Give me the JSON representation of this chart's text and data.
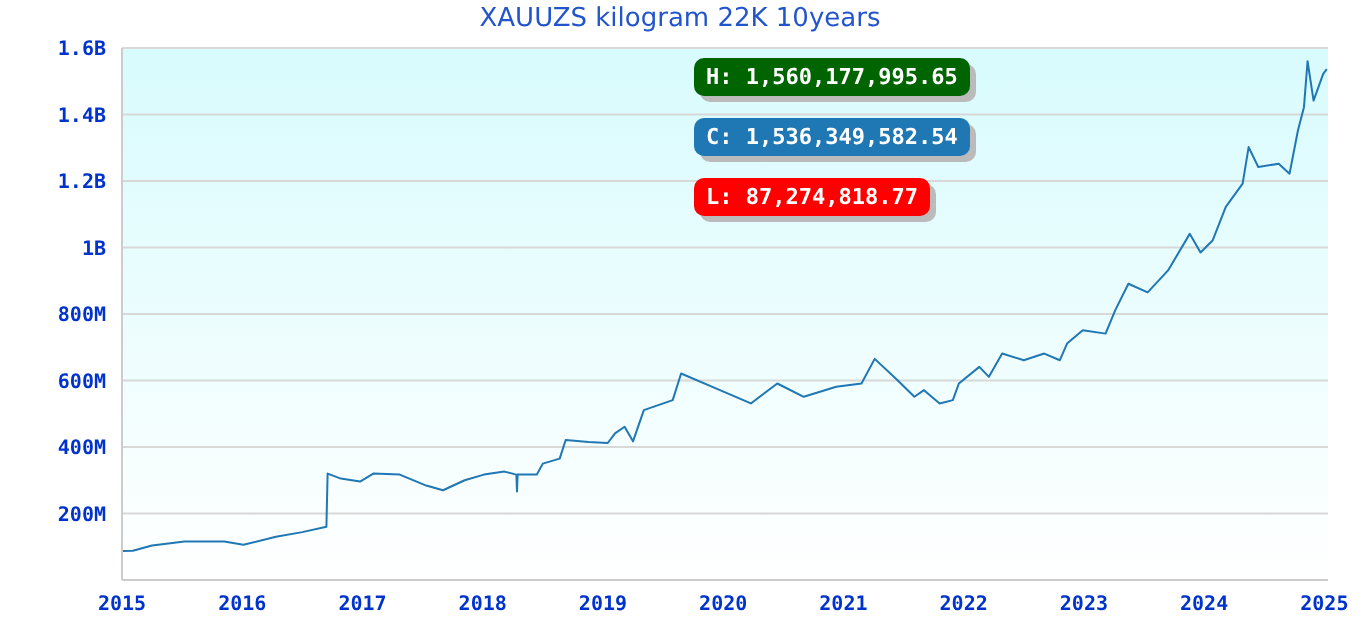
{
  "chart_data": {
    "type": "line",
    "title": "XAUUZS kilogram 22K 10years",
    "x": [
      2015,
      2015.09,
      2015.25,
      2015.52,
      2015.85,
      2016.01,
      2016.28,
      2016.5,
      2016.7,
      2016.71,
      2016.82,
      2016.98,
      2017.09,
      2017.31,
      2017.53,
      2017.67,
      2017.85,
      2018.01,
      2018.18,
      2018.28,
      2018.285,
      2018.29,
      2018.45,
      2018.5,
      2018.64,
      2018.69,
      2018.88,
      2019.04,
      2019.1,
      2019.18,
      2019.25,
      2019.34,
      2019.58,
      2019.65,
      2019.91,
      2020.23,
      2020.45,
      2020.67,
      2020.94,
      2021.15,
      2021.26,
      2021.45,
      2021.59,
      2021.67,
      2021.8,
      2021.91,
      2021.96,
      2022.13,
      2022.21,
      2022.32,
      2022.5,
      2022.67,
      2022.8,
      2022.86,
      2022.99,
      2023.18,
      2023.26,
      2023.37,
      2023.53,
      2023.7,
      2023.88,
      2023.97,
      2024.07,
      2024.18,
      2024.32,
      2024.37,
      2024.45,
      2024.62,
      2024.71,
      2024.78,
      2024.83,
      2024.86,
      2024.91,
      2024.99,
      2025.02
    ],
    "series": [
      {
        "color": "#1f77b4",
        "values": [
          87274818.77,
          88000000,
          104000000,
          116000000,
          116000000,
          106000000,
          130000000,
          144000000,
          160000000,
          320000000,
          305000000,
          296000000,
          320000000,
          317000000,
          284000000,
          270000000,
          300000000,
          317000000,
          326000000,
          317000000,
          266000000,
          317000000,
          317000000,
          350000000,
          365000000,
          421000000,
          415000000,
          412000000,
          441000000,
          461000000,
          417000000,
          511000000,
          541000000,
          621000000,
          581000000,
          531000000,
          591000000,
          551000000,
          581000000,
          591000000,
          665000000,
          601000000,
          551000000,
          571000000,
          531000000,
          541000000,
          591000000,
          641000000,
          611000000,
          681000000,
          661000000,
          681000000,
          661000000,
          711000000,
          751000000,
          741000000,
          811000000,
          891000000,
          865000000,
          931000000,
          1041000000,
          985000000,
          1021000000,
          1122000000,
          1192000000,
          1302000000,
          1242000000,
          1252000000,
          1222000000,
          1352000000,
          1422000000,
          1560177995.65,
          1442000000,
          1522000000,
          1536349582.54
        ]
      }
    ],
    "xlim": [
      2015,
      2025.03
    ],
    "xticks": [
      2015,
      2016,
      2017,
      2018,
      2019,
      2020,
      2021,
      2022,
      2023,
      2024,
      2025
    ],
    "ylim": [
      0,
      1600000000
    ],
    "yticks": [
      {
        "value": 200000000,
        "label": "200M"
      },
      {
        "value": 400000000,
        "label": "400M"
      },
      {
        "value": 600000000,
        "label": "600M"
      },
      {
        "value": 800000000,
        "label": "800M"
      },
      {
        "value": 1000000000,
        "label": "1B"
      },
      {
        "value": 1200000000,
        "label": "1.2B"
      },
      {
        "value": 1400000000,
        "label": "1.4B"
      },
      {
        "value": 1600000000,
        "label": "1.6B"
      }
    ],
    "grid": "y",
    "marker": "none",
    "line_style": "solid",
    "annotations": [
      "H: 1,560,177,995.65",
      "C: 1,536,349,582.54",
      "L: 87,274,818.77"
    ]
  }
}
